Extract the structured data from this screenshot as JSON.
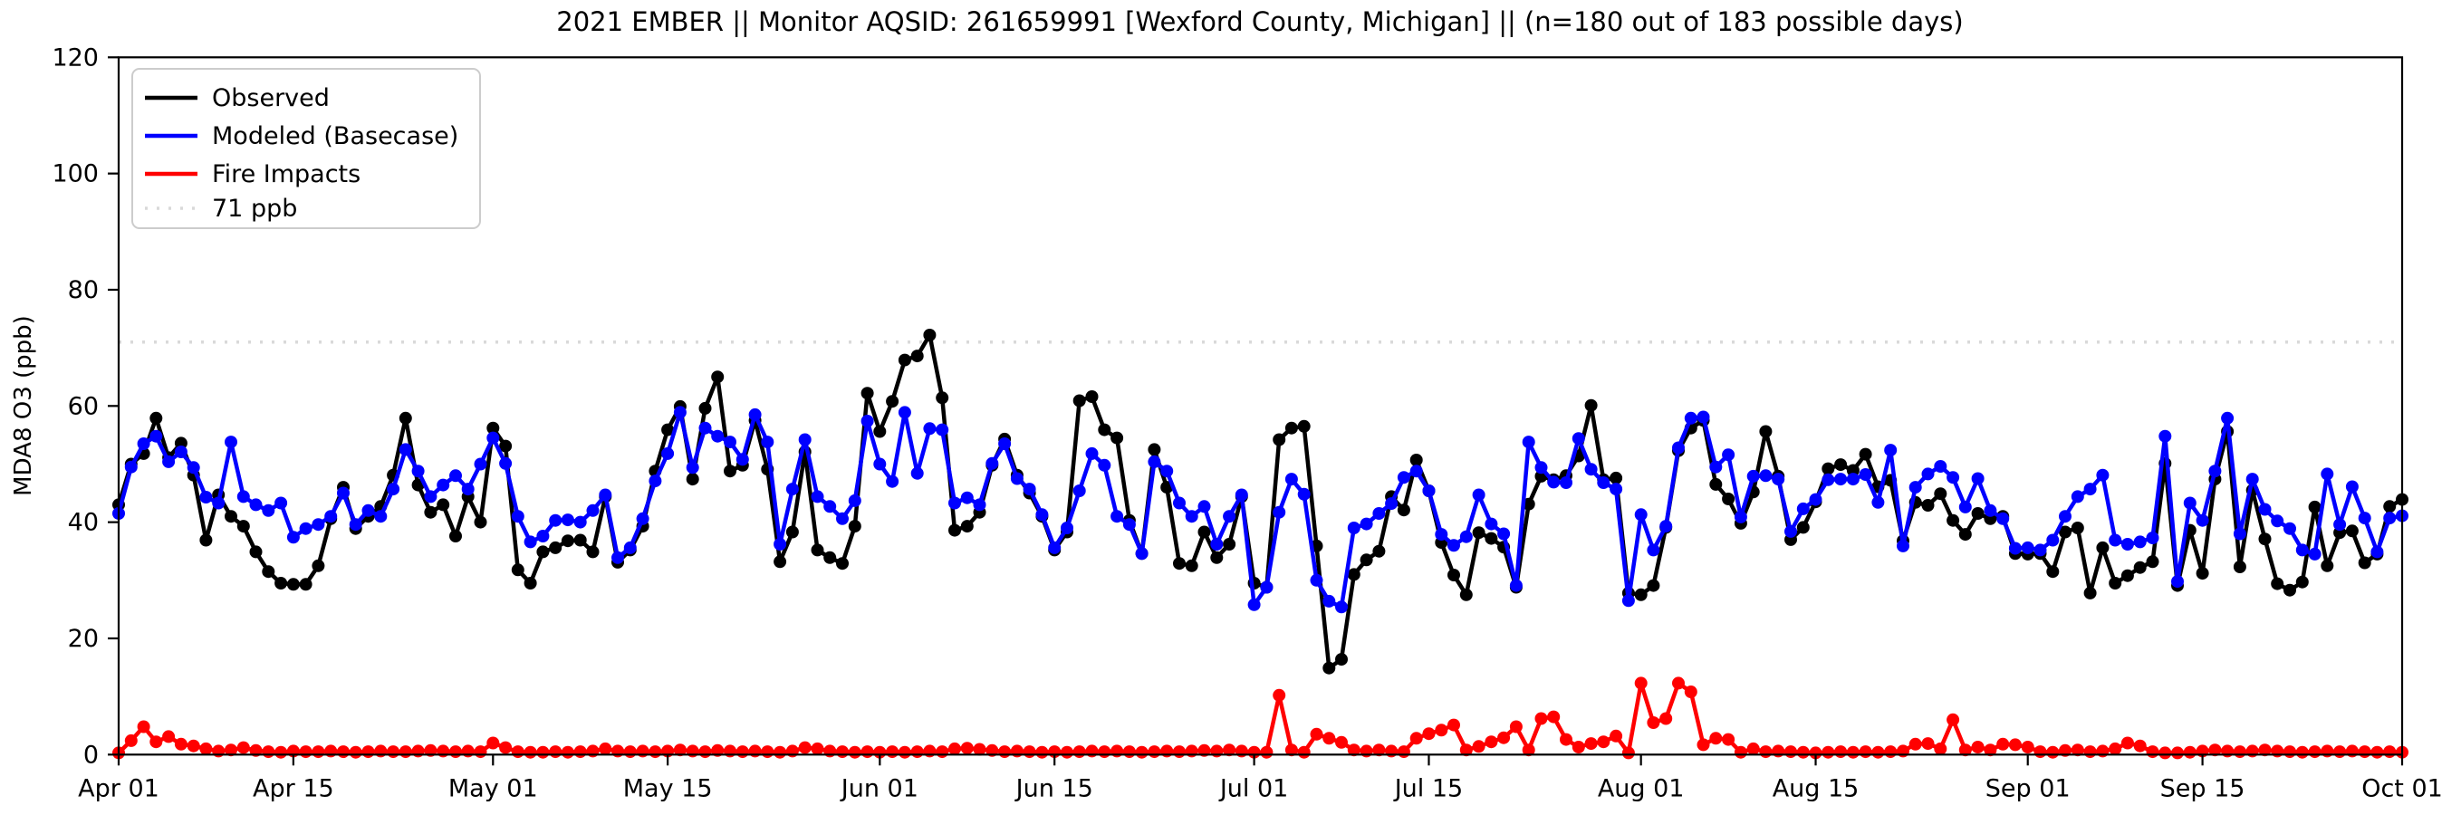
{
  "chart_data": {
    "type": "line",
    "title": "2021 EMBER || Monitor AQSID: 261659991 [Wexford County, Michigan] || (n=180 out of 183 possible days)",
    "ylabel": "MDA8 O3 (ppb)",
    "ylim": [
      0,
      120
    ],
    "yticks": [
      0,
      20,
      40,
      60,
      80,
      100,
      120
    ],
    "grid": "off",
    "x_axis": {
      "unit": "day",
      "start_label": "Apr 01",
      "end_label": "Oct 01",
      "n_points": 184,
      "ticks": [
        {
          "day": 0,
          "label": "Apr 01"
        },
        {
          "day": 14,
          "label": "Apr 15"
        },
        {
          "day": 30,
          "label": "May 01"
        },
        {
          "day": 44,
          "label": "May 15"
        },
        {
          "day": 61,
          "label": "Jun 01"
        },
        {
          "day": 75,
          "label": "Jun 15"
        },
        {
          "day": 91,
          "label": "Jul 01"
        },
        {
          "day": 105,
          "label": "Jul 15"
        },
        {
          "day": 122,
          "label": "Aug 01"
        },
        {
          "day": 136,
          "label": "Aug 15"
        },
        {
          "day": 153,
          "label": "Sep 01"
        },
        {
          "day": 167,
          "label": "Sep 15"
        },
        {
          "day": 183,
          "label": "Oct 01"
        }
      ]
    },
    "threshold": {
      "value": 71,
      "label": "71 ppb",
      "color": "#d9d9d9",
      "style": "dotted"
    },
    "legend": {
      "position": "upper-left",
      "entries": [
        {
          "label": "Observed",
          "color": "#000000",
          "style": "solid"
        },
        {
          "label": "Modeled (Basecase)",
          "color": "#0000ff",
          "style": "solid"
        },
        {
          "label": "Fire Impacts",
          "color": "#ff0000",
          "style": "solid"
        },
        {
          "label": "71 ppb",
          "color": "#d9d9d9",
          "style": "dotted"
        }
      ]
    },
    "series": [
      {
        "name": "Observed",
        "color": "#000000",
        "marker": "circle",
        "values": [
          43.0,
          50.0,
          51.8,
          57.9,
          51.1,
          53.6,
          48.1,
          36.9,
          44.7,
          41.0,
          39.3,
          34.9,
          31.5,
          29.5,
          29.3,
          29.3,
          32.5,
          40.6,
          46.0,
          38.9,
          41.0,
          42.7,
          48.1,
          57.9,
          46.4,
          41.7,
          43.0,
          37.6,
          44.4,
          40.0,
          56.2,
          53.1,
          31.8,
          29.5,
          34.9,
          35.6,
          36.8,
          36.9,
          34.9,
          44.4,
          33.1,
          35.2,
          39.3,
          48.8,
          55.9,
          59.9,
          47.4,
          59.6,
          65.0,
          48.8,
          49.8,
          57.5,
          49.1,
          33.2,
          38.3,
          52.1,
          35.2,
          33.9,
          32.9,
          39.3,
          62.2,
          55.6,
          60.8,
          67.9,
          68.6,
          72.2,
          61.4,
          38.6,
          39.3,
          41.7,
          49.8,
          54.3,
          48.1,
          45.0,
          41.0,
          35.2,
          38.3,
          60.9,
          61.6,
          55.9,
          54.5,
          40.3,
          34.6,
          52.5,
          46.0,
          32.9,
          32.5,
          38.3,
          33.9,
          36.2,
          44.4,
          29.5,
          28.8,
          54.2,
          56.2,
          56.5,
          35.9,
          14.9,
          16.4,
          31.0,
          33.5,
          35.0,
          44.4,
          42.1,
          50.7,
          45.4,
          36.5,
          30.9,
          27.5,
          38.2,
          37.2,
          35.7,
          28.8,
          43.1,
          47.9,
          47.3,
          48.0,
          51.4,
          60.1,
          47.3,
          47.6,
          27.8,
          27.5,
          29.1,
          39.1,
          52.3,
          56.2,
          57.5,
          46.5,
          44.0,
          39.8,
          45.2,
          55.6,
          47.9,
          37.0,
          39.1,
          43.5,
          49.2,
          49.9,
          48.9,
          51.7,
          46.1,
          47.2,
          36.8,
          43.4,
          42.9,
          44.9,
          40.3,
          37.9,
          41.5,
          40.6,
          41.0,
          34.6,
          34.5,
          34.6,
          31.5,
          38.3,
          39.0,
          27.8,
          35.6,
          29.5,
          30.8,
          32.2,
          33.2,
          50.1,
          29.1,
          38.6,
          31.2,
          47.4,
          55.6,
          32.3,
          45.5,
          37.1,
          29.4,
          28.3,
          29.7,
          42.6,
          32.5,
          38.2,
          38.5,
          33.0,
          34.5,
          42.7,
          43.9
        ]
      },
      {
        "name": "Modeled (Basecase)",
        "color": "#0000ff",
        "marker": "circle",
        "values": [
          41.5,
          49.5,
          53.5,
          54.8,
          50.4,
          52.1,
          49.4,
          44.3,
          43.3,
          53.8,
          44.4,
          43.0,
          42.0,
          43.3,
          37.4,
          38.9,
          39.6,
          41.0,
          45.0,
          39.6,
          42.0,
          41.0,
          45.7,
          52.5,
          48.8,
          44.4,
          46.4,
          48.0,
          45.7,
          50.0,
          54.5,
          50.1,
          41.0,
          36.6,
          37.6,
          40.3,
          40.4,
          40.0,
          42.0,
          44.7,
          33.9,
          35.6,
          40.6,
          47.1,
          51.8,
          58.9,
          49.4,
          56.2,
          54.8,
          53.8,
          50.8,
          58.5,
          53.8,
          36.2,
          45.7,
          54.2,
          44.4,
          42.7,
          40.6,
          43.7,
          57.4,
          50.0,
          47.0,
          58.9,
          48.4,
          56.1,
          55.9,
          43.3,
          44.2,
          43.0,
          50.1,
          53.5,
          47.5,
          45.7,
          41.3,
          35.6,
          39.0,
          45.4,
          51.8,
          49.8,
          41.0,
          39.6,
          34.6,
          50.4,
          48.8,
          43.3,
          41.0,
          42.7,
          36.2,
          41.0,
          44.7,
          25.8,
          28.8,
          41.7,
          47.4,
          44.8,
          30.0,
          26.4,
          25.4,
          39.0,
          39.7,
          41.5,
          43.2,
          47.7,
          48.8,
          45.4,
          37.9,
          36.0,
          37.5,
          44.7,
          39.7,
          38.0,
          29.1,
          53.8,
          49.4,
          46.9,
          46.8,
          54.4,
          49.1,
          46.8,
          45.7,
          26.5,
          41.3,
          35.2,
          39.3,
          52.8,
          57.9,
          58.1,
          49.5,
          51.6,
          40.9,
          47.9,
          48.0,
          47.4,
          38.4,
          42.3,
          43.9,
          47.3,
          47.4,
          47.4,
          48.2,
          43.4,
          52.4,
          35.9,
          46.0,
          48.3,
          49.6,
          47.7,
          42.6,
          47.5,
          42.0,
          40.6,
          35.5,
          35.6,
          35.2,
          36.9,
          41.0,
          44.4,
          45.7,
          48.1,
          36.9,
          36.2,
          36.6,
          37.3,
          54.8,
          29.8,
          43.3,
          40.3,
          48.8,
          57.9,
          38.0,
          47.4,
          42.2,
          40.2,
          38.9,
          35.2,
          34.5,
          48.3,
          39.6,
          46.1,
          40.7,
          34.9,
          40.7,
          41.1
        ]
      },
      {
        "name": "Fire Impacts",
        "color": "#ff0000",
        "marker": "circle",
        "values": [
          0.3,
          2.4,
          4.8,
          2.2,
          3.1,
          1.8,
          1.5,
          1.0,
          0.6,
          0.8,
          1.2,
          0.7,
          0.5,
          0.4,
          0.6,
          0.5,
          0.5,
          0.6,
          0.5,
          0.4,
          0.5,
          0.6,
          0.5,
          0.5,
          0.6,
          0.7,
          0.6,
          0.5,
          0.6,
          0.5,
          2.0,
          1.2,
          0.5,
          0.4,
          0.4,
          0.5,
          0.4,
          0.5,
          0.6,
          1.0,
          0.6,
          0.5,
          0.6,
          0.5,
          0.6,
          0.8,
          0.6,
          0.5,
          0.7,
          0.6,
          0.5,
          0.6,
          0.5,
          0.4,
          0.6,
          1.2,
          1.0,
          0.6,
          0.5,
          0.4,
          0.5,
          0.4,
          0.5,
          0.4,
          0.5,
          0.6,
          0.5,
          1.0,
          1.1,
          0.9,
          0.7,
          0.5,
          0.6,
          0.5,
          0.4,
          0.5,
          0.4,
          0.5,
          0.6,
          0.5,
          0.6,
          0.5,
          0.4,
          0.5,
          0.6,
          0.5,
          0.6,
          0.7,
          0.6,
          0.8,
          0.6,
          0.4,
          0.4,
          10.2,
          0.8,
          0.4,
          3.5,
          2.8,
          2.1,
          0.8,
          0.6,
          0.8,
          0.6,
          0.5,
          2.8,
          3.6,
          4.2,
          5.1,
          0.8,
          1.4,
          2.2,
          2.9,
          4.8,
          0.8,
          6.2,
          6.5,
          2.6,
          1.3,
          1.9,
          2.2,
          3.2,
          0.3,
          12.3,
          5.5,
          6.2,
          12.3,
          10.8,
          1.7,
          2.8,
          2.6,
          0.4,
          1.0,
          0.5,
          0.6,
          0.5,
          0.4,
          0.3,
          0.4,
          0.5,
          0.4,
          0.5,
          0.4,
          0.5,
          0.6,
          1.8,
          1.9,
          1.0,
          6.0,
          0.8,
          1.3,
          0.8,
          1.8,
          1.7,
          1.3,
          0.5,
          0.4,
          0.7,
          0.8,
          0.5,
          0.6,
          1.0,
          2.0,
          1.5,
          0.5,
          0.3,
          0.3,
          0.4,
          0.6,
          0.8,
          0.6,
          0.5,
          0.6,
          0.8,
          0.6,
          0.5,
          0.4,
          0.5,
          0.6,
          0.5,
          0.6,
          0.5,
          0.4,
          0.5,
          0.4
        ]
      }
    ]
  }
}
